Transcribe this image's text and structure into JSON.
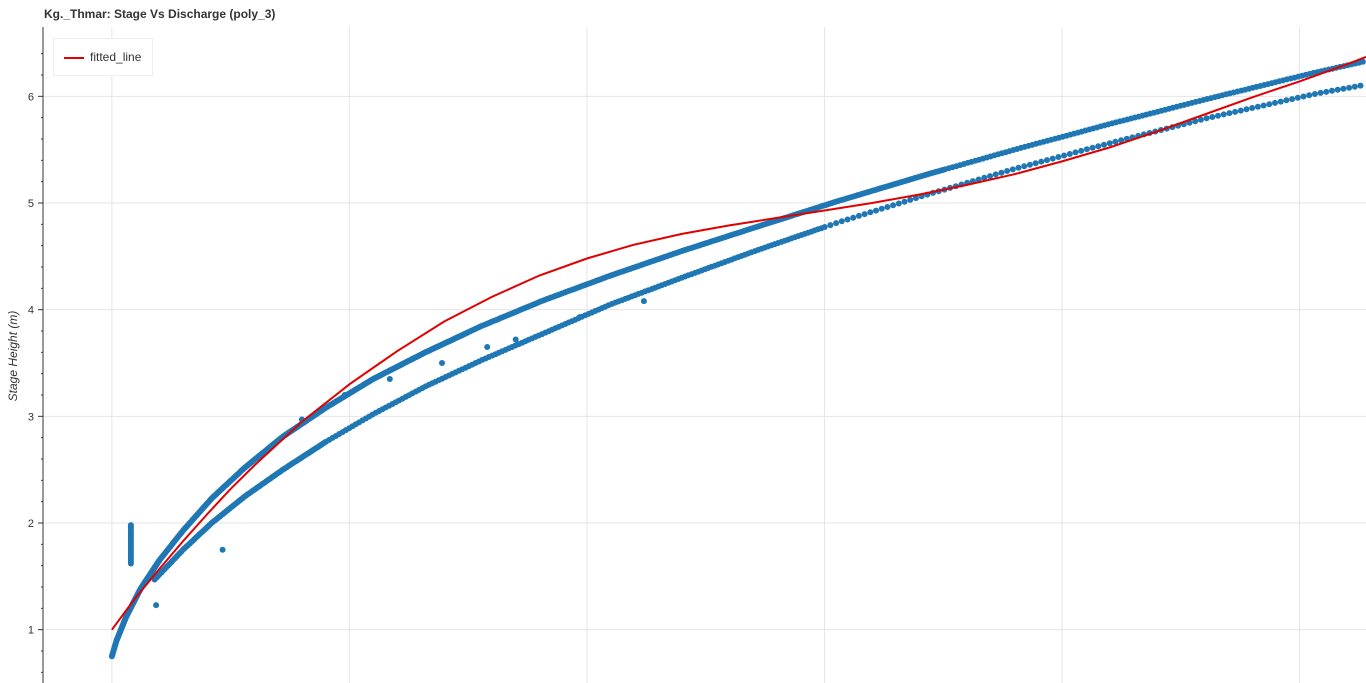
{
  "chart_data": {
    "type": "scatter",
    "title": "Kg._Thmar: Stage Vs Discharge (poly_3)",
    "xlabel": "",
    "ylabel": "Stage Height (m)",
    "ylim": [
      0.5,
      6.65
    ],
    "xlim": [
      -290,
      5280
    ],
    "yticks": [
      1,
      2,
      3,
      4,
      5,
      6
    ],
    "grid": true,
    "legend_position": "top-left",
    "colors": {
      "points": "#1f77b4",
      "fitted_line": "#e00000"
    },
    "series": [
      {
        "kind": "points",
        "curve": {
          "x": [
            0,
            20,
            60,
            120,
            200,
            300,
            420,
            560,
            720,
            900,
            1100,
            1320,
            1560,
            1820,
            2100,
            2400,
            2720,
            3060,
            3420,
            3800,
            4200,
            4620,
            5060,
            5280
          ],
          "y": [
            0.75,
            0.9,
            1.12,
            1.38,
            1.65,
            1.93,
            2.23,
            2.52,
            2.81,
            3.08,
            3.35,
            3.6,
            3.85,
            4.09,
            4.32,
            4.55,
            4.78,
            5.02,
            5.26,
            5.5,
            5.74,
            5.98,
            6.22,
            6.33
          ]
        },
        "lower_branch": {
          "x": [
            180,
            300,
            420,
            560,
            720,
            900,
            1100,
            1320,
            1560,
            1820,
            2100,
            2400,
            2720,
            3060,
            3420,
            3800,
            4200,
            4620,
            5060,
            5280
          ],
          "y": [
            1.47,
            1.75,
            2.0,
            2.25,
            2.5,
            2.76,
            3.02,
            3.28,
            3.53,
            3.78,
            4.05,
            4.3,
            4.56,
            4.82,
            5.07,
            5.32,
            5.56,
            5.8,
            6.02,
            6.11
          ]
        },
        "vertical_cluster": {
          "x": 80,
          "y_range": [
            1.62,
            2.0
          ]
        },
        "outliers": {
          "x": [
            186,
            466,
            800,
            980,
            1170,
            1390,
            1580,
            1700,
            1970,
            2240
          ],
          "y": [
            1.23,
            1.75,
            2.97,
            3.2,
            3.35,
            3.5,
            3.65,
            3.72,
            3.93,
            4.08
          ]
        }
      },
      {
        "kind": "line",
        "name": "fitted_line",
        "x": [
          0,
          100,
          200,
          300,
          400,
          500,
          600,
          800,
          1000,
          1200,
          1400,
          1600,
          1800,
          2000,
          2200,
          2400,
          2600,
          2800,
          3000,
          3200,
          3400,
          3600,
          3800,
          4000,
          4200,
          4400,
          4600,
          4800,
          5000,
          5200,
          5280
        ],
        "y": [
          1.0,
          1.3,
          1.57,
          1.83,
          2.08,
          2.32,
          2.54,
          2.95,
          3.3,
          3.61,
          3.89,
          4.12,
          4.32,
          4.48,
          4.61,
          4.71,
          4.79,
          4.86,
          4.93,
          5.0,
          5.08,
          5.17,
          5.27,
          5.39,
          5.52,
          5.67,
          5.83,
          5.99,
          6.14,
          6.3,
          6.37
        ]
      }
    ]
  }
}
